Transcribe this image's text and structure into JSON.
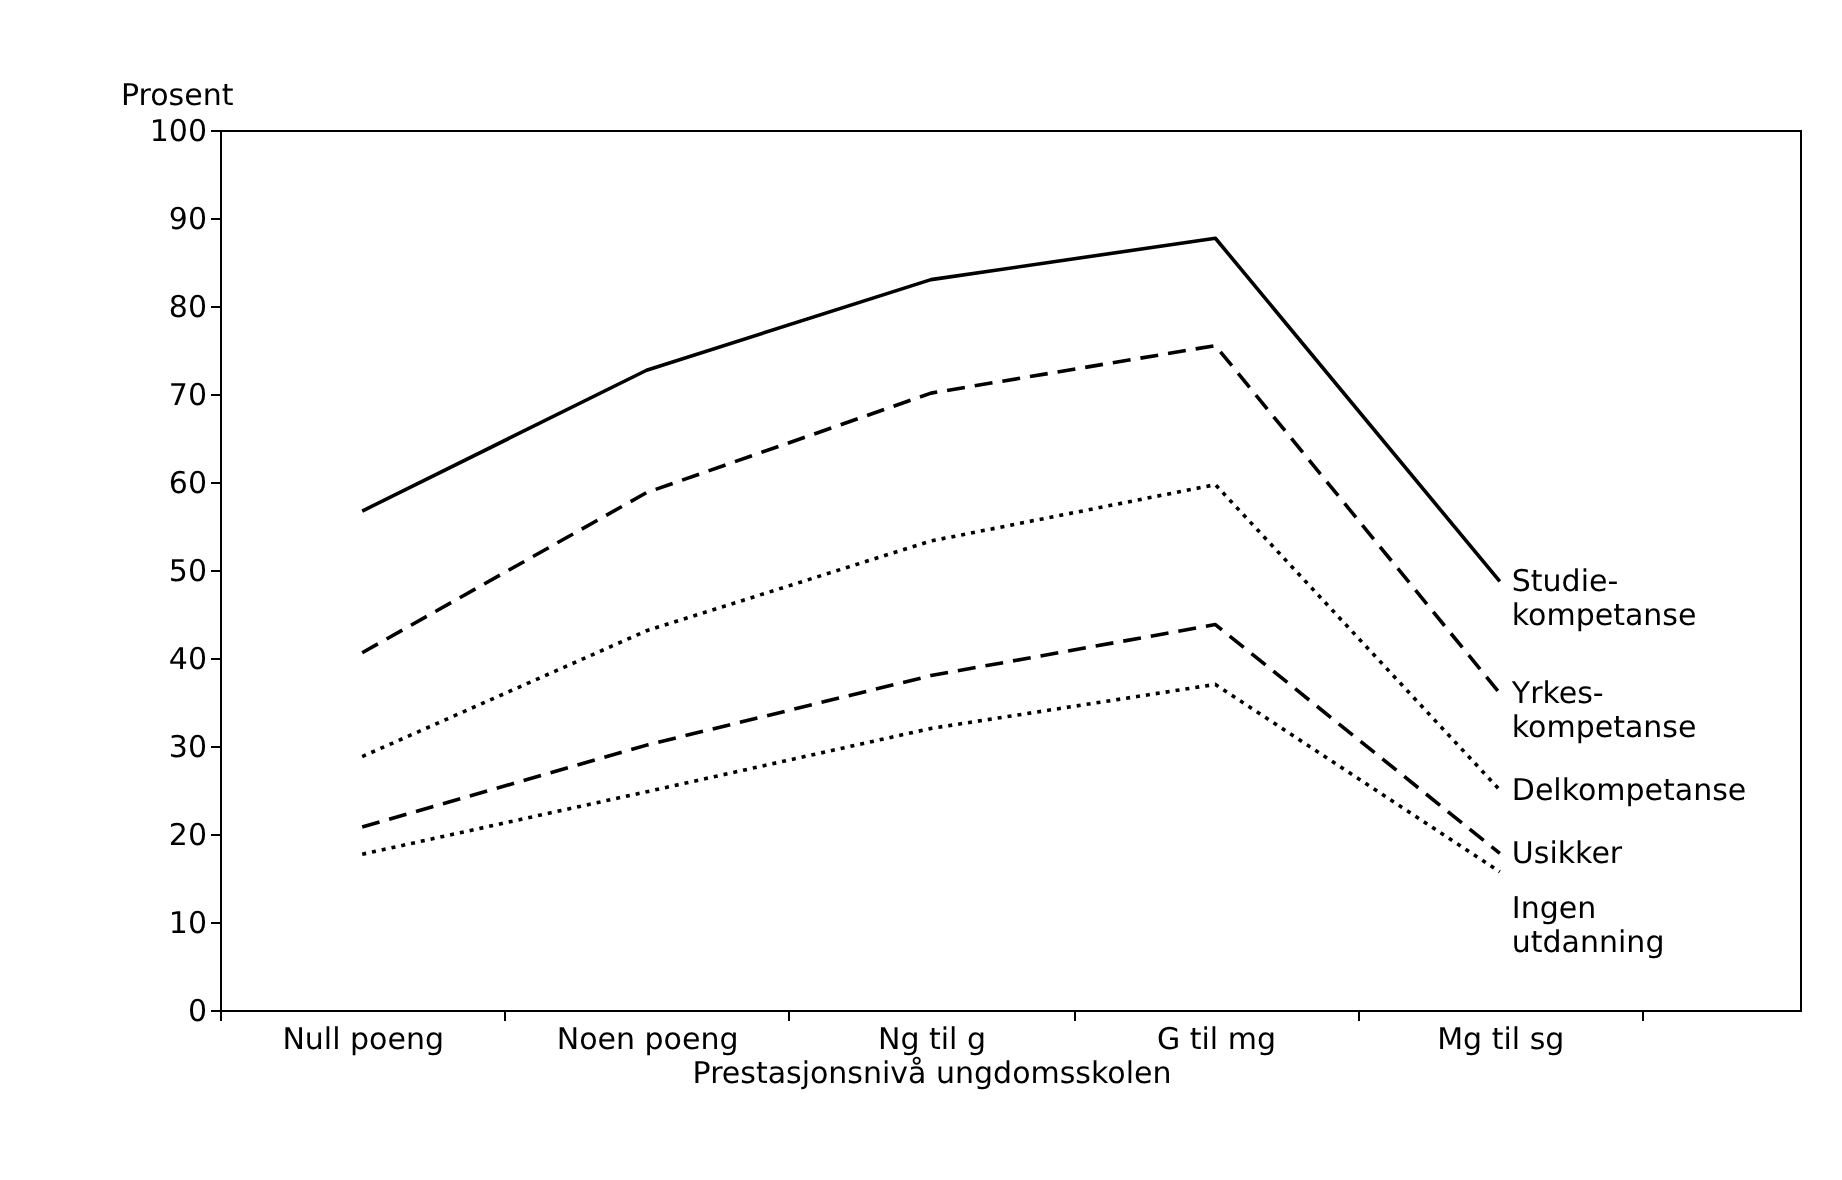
{
  "chart_data": {
    "type": "line",
    "xlabel": "Prestasjonsnivå ungdomsskolen",
    "ylabel": "Prosent",
    "categories": [
      "Null poeng",
      "Noen poeng",
      "Ng til g",
      "G til mg",
      "Mg til sg"
    ],
    "ylim": [
      0,
      100
    ],
    "yticks": [
      0,
      10,
      20,
      30,
      40,
      50,
      60,
      70,
      80,
      90,
      100
    ],
    "marker": "none",
    "series": [
      {
        "name": "Studie-\nkompetanse",
        "color": "#000000",
        "line_style": "solid",
        "values": [
          56.7,
          72.7,
          83,
          87.7,
          48.7
        ]
      },
      {
        "name": "Yrkes-\nkompetanse",
        "color": "#000000",
        "line_style": "dashed",
        "values": [
          40.6,
          58.8,
          70.1,
          75.5,
          36
        ]
      },
      {
        "name": "Delkompetanse",
        "color": "#000000",
        "line_style": "dotted",
        "values": [
          28.8,
          43.1,
          53.3,
          59.7,
          25
        ]
      },
      {
        "name": "Usikker",
        "color": "#000000",
        "line_style": "dashed",
        "values": [
          20.8,
          30.1,
          38,
          43.8,
          17.8
        ]
      },
      {
        "name": "Ingen\nutdanning",
        "color": "#000000",
        "line_style": "dotted",
        "values": [
          17.7,
          24.8,
          32,
          37,
          15.7
        ]
      }
    ]
  }
}
